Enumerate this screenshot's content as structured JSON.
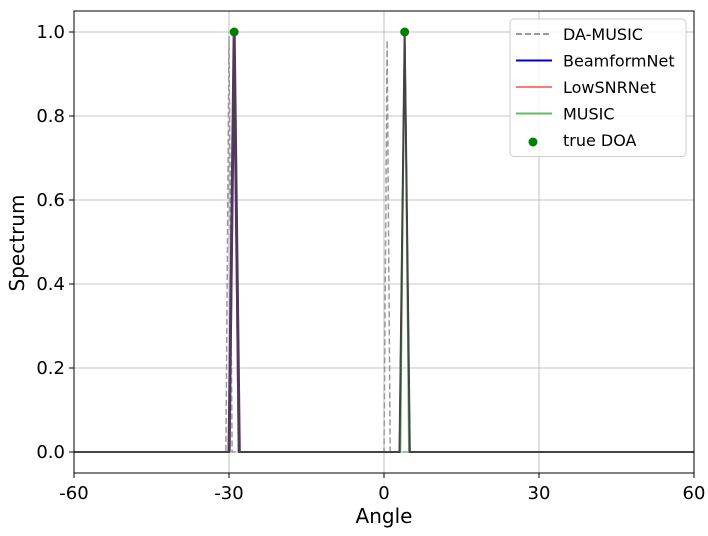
{
  "chart_data": {
    "type": "line",
    "title": "",
    "xlabel": "Angle",
    "ylabel": "Spectrum",
    "xlim": [
      -60,
      60
    ],
    "ylim": [
      -0.05,
      1.05
    ],
    "xticks": [
      -60,
      -30,
      0,
      30,
      60
    ],
    "xtick_labels": [
      "-60",
      "-30",
      "0",
      "30",
      "60"
    ],
    "yticks": [
      0.0,
      0.2,
      0.4,
      0.6,
      0.8,
      1.0
    ],
    "ytick_labels": [
      "0.0",
      "0.2",
      "0.4",
      "0.6",
      "0.8",
      "1.0"
    ],
    "grid": true,
    "legend_position": "top-right",
    "series": [
      {
        "name": "DA-MUSIC",
        "color": "#999999",
        "style": "dashed",
        "x": [
          -60,
          -30.6,
          -30,
          -29.4,
          0,
          0.6,
          1.2,
          60
        ],
        "y": [
          0,
          0,
          0.99,
          0,
          0,
          0.98,
          0,
          0
        ]
      },
      {
        "name": "BeamformNet",
        "color": "#0000cc",
        "style": "solid",
        "x": [
          -60,
          -30,
          -29,
          -28,
          3,
          4,
          5,
          60
        ],
        "y": [
          0,
          0,
          1.0,
          0,
          0,
          1.0,
          0,
          0
        ]
      },
      {
        "name": "LowSNRNet",
        "color": "#ff7777",
        "style": "solid",
        "x": [
          -60,
          -30,
          -29,
          -28,
          3,
          4,
          5,
          60
        ],
        "y": [
          0,
          0,
          1.0,
          0,
          0,
          1.0,
          0,
          0
        ]
      },
      {
        "name": "MUSIC",
        "color": "#66bb66",
        "style": "solid",
        "x": [
          -60,
          -29.8,
          -29,
          -28.2,
          3.2,
          4,
          4.8,
          60
        ],
        "y": [
          0,
          0,
          1.0,
          0,
          0,
          1.0,
          0,
          0
        ]
      }
    ],
    "overlay_series": {
      "color": "#444444",
      "x": [
        -60,
        -30,
        -29,
        -28,
        3,
        4,
        5,
        60
      ],
      "y": [
        0,
        0,
        1.0,
        0,
        0,
        1.0,
        0,
        0
      ]
    },
    "purple_peak": {
      "color": "#7a1a9a",
      "x": [
        -30,
        -29,
        -28
      ],
      "y": [
        0,
        1.0,
        0
      ]
    },
    "scatter": {
      "name": "true DOA",
      "color": "#008000",
      "x": [
        -29,
        4
      ],
      "y": [
        1.0,
        1.0
      ]
    }
  }
}
